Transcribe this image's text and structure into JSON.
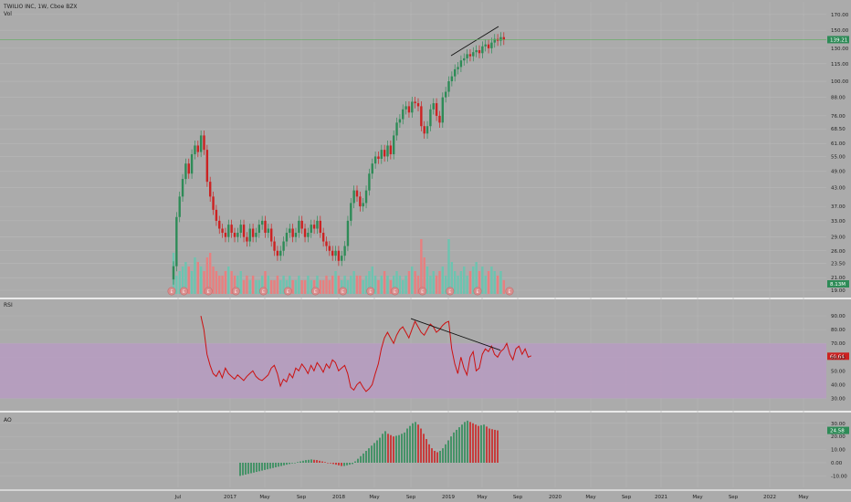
{
  "header": {
    "symbol_line": "TWILIO INC, 1W, Cboe BZX",
    "vol_label": "Vol"
  },
  "panes": {
    "rsi_label": "RSI",
    "ao_label": "AO"
  },
  "colors": {
    "background": "#ababab",
    "up": "#2e8b57",
    "down": "#cc2222",
    "vol_up": "#6cc4b0",
    "vol_down": "#e87f7f",
    "rsi_line": "#cc1111",
    "rsi_band": "#b69bc1",
    "price_line": "#5fae5f",
    "badge_red": "#cc2222",
    "badge_green": "#2e8b57"
  },
  "chart_data": [
    {
      "type": "candlestick",
      "title": "TWILIO INC, 1W, Cboe BZX",
      "yscale": "log",
      "ylim": [
        19,
        180
      ],
      "y_ticks": [
        "170.00",
        "150.00",
        "130.00",
        "115.00",
        "100.00",
        "88.00",
        "76.00",
        "68.50",
        "61.00",
        "55.00",
        "49.00",
        "43.00",
        "37.00",
        "33.00",
        "29.00",
        "26.00",
        "23.50",
        "21.00",
        "19.00"
      ],
      "x_ticks": [
        "Jul",
        "2017",
        "May",
        "Sep",
        "2018",
        "May",
        "Sep",
        "2019",
        "May",
        "Sep",
        "2020",
        "May",
        "Sep",
        "2021",
        "May",
        "Sep",
        "2022",
        "May"
      ],
      "last_price": "139.21",
      "volume_last": "8.13M",
      "earnings_markers": "E",
      "close_series": [
        23,
        34,
        40,
        46,
        52,
        48,
        56,
        60,
        57,
        65,
        58,
        45,
        40,
        36,
        33,
        31,
        30,
        29,
        32,
        30,
        29,
        30,
        32,
        29,
        28,
        31,
        29,
        30,
        32,
        33,
        30,
        31,
        28,
        26,
        25,
        26,
        28,
        30,
        31,
        29,
        30,
        33,
        31,
        29,
        30,
        32,
        31,
        33,
        30,
        28,
        27,
        26,
        25,
        26,
        24,
        25,
        27,
        33,
        38,
        42,
        40,
        37,
        38,
        42,
        48,
        52,
        55,
        54,
        58,
        55,
        60,
        56,
        65,
        72,
        74,
        80,
        82,
        78,
        85,
        84,
        82,
        70,
        66,
        70,
        80,
        84,
        76,
        72,
        88,
        92,
        100,
        104,
        110,
        112,
        118,
        120,
        124,
        122,
        126,
        128,
        125,
        132,
        134,
        130,
        136,
        140,
        138,
        142,
        139
      ],
      "volume_series": [
        9,
        4,
        5,
        6,
        7,
        6,
        5,
        8,
        7,
        6,
        5,
        8,
        9,
        6,
        5,
        4,
        4,
        5,
        6,
        5,
        4,
        4,
        5,
        3,
        4,
        3,
        4,
        3,
        3,
        4,
        5,
        4,
        3,
        3,
        4,
        3,
        4,
        3,
        4,
        3,
        3,
        4,
        3,
        3,
        4,
        3,
        3,
        4,
        3,
        3,
        4,
        3,
        4,
        5,
        4,
        3,
        4,
        3,
        4,
        5,
        4,
        4,
        3,
        4,
        5,
        6,
        4,
        3,
        4,
        5,
        4,
        3,
        4,
        5,
        4,
        3,
        4,
        5,
        6,
        5,
        4,
        12,
        8,
        6,
        4,
        5,
        4,
        5,
        6,
        4,
        12,
        7,
        5,
        4,
        5,
        6,
        4,
        5,
        6,
        7,
        5,
        6,
        4,
        5,
        6,
        5,
        4,
        5,
        3
      ]
    },
    {
      "type": "line",
      "title": "RSI",
      "ylim": [
        25,
        98
      ],
      "y_ticks": [
        "90.00",
        "80.00",
        "70.00",
        "60.00",
        "50.00",
        "40.00",
        "30.00"
      ],
      "band": [
        30,
        70
      ],
      "last_value": "60.64",
      "values": [
        90,
        80,
        62,
        54,
        48,
        46,
        50,
        45,
        52,
        48,
        46,
        44,
        47,
        45,
        43,
        46,
        48,
        50,
        46,
        44,
        43,
        45,
        47,
        52,
        54,
        48,
        39,
        44,
        42,
        48,
        45,
        52,
        50,
        55,
        52,
        48,
        54,
        50,
        56,
        53,
        49,
        55,
        52,
        58,
        56,
        50,
        52,
        54,
        48,
        38,
        36,
        40,
        42,
        38,
        35,
        37,
        40,
        48,
        55,
        66,
        74,
        78,
        74,
        70,
        76,
        80,
        82,
        78,
        74,
        80,
        86,
        82,
        78,
        76,
        80,
        84,
        82,
        78,
        80,
        83,
        85,
        86,
        66,
        55,
        48,
        60,
        52,
        47,
        60,
        64,
        50,
        52,
        62,
        66,
        64,
        68,
        62,
        60,
        64,
        66,
        70,
        62,
        58,
        66,
        68,
        62,
        66,
        60,
        61
      ],
      "trendline": true
    },
    {
      "type": "bar",
      "title": "AO",
      "y_ticks": [
        "30.00",
        "20.00",
        "10.00",
        "0.00",
        "-10.00"
      ],
      "ylim": [
        -16,
        34
      ],
      "last_value": "24.58",
      "values": [
        -10,
        -9.5,
        -9,
        -8.5,
        -8,
        -7.5,
        -7,
        -6.5,
        -6,
        -5.5,
        -5,
        -4.5,
        -4,
        -3.5,
        -3,
        -2.5,
        -2,
        -1.5,
        -1,
        -0.5,
        0,
        0.5,
        1,
        1.5,
        2,
        2.2,
        2.5,
        2.2,
        2,
        1.5,
        1,
        0.5,
        0,
        -0.5,
        -1,
        -1.5,
        -2,
        -2.5,
        -2.5,
        -2,
        -1.5,
        -1,
        1,
        3,
        5,
        7,
        9,
        11,
        13,
        15,
        17,
        19,
        22,
        24,
        22,
        21,
        20,
        20.5,
        21,
        22,
        23,
        26,
        28,
        30,
        31,
        29,
        26,
        22,
        18,
        14,
        11,
        9,
        8,
        9,
        11,
        14,
        17,
        20,
        23,
        25,
        27,
        29,
        31,
        32,
        31,
        30,
        29,
        28,
        28.5,
        29,
        27.5,
        26,
        25.5,
        25,
        24.6
      ]
    }
  ]
}
